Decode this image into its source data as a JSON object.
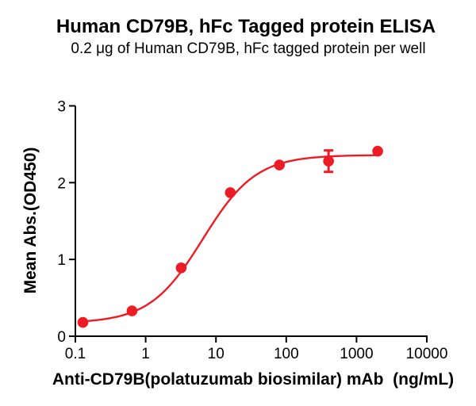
{
  "chart_data": {
    "type": "scatter",
    "title": "Human CD79B, hFc Tagged protein ELISA",
    "subtitle": "0.2 μg of Human CD79B, hFc tagged protein per well",
    "xlabel": "Anti-CD79B(polatuzumab biosimilar) mAb  (ng/mL)",
    "ylabel": "Mean Abs.(OD450)",
    "x_scale": "log10",
    "xlim": [
      0.1,
      10000
    ],
    "ylim": [
      0,
      3
    ],
    "x_ticks": [
      0.1,
      1,
      10,
      100,
      1000,
      10000
    ],
    "x_tick_labels": [
      "0.1",
      "1",
      "10",
      "100",
      "1000",
      "10000"
    ],
    "y_ticks": [
      0,
      1,
      2,
      3
    ],
    "y_tick_labels": [
      "0",
      "1",
      "2",
      "3"
    ],
    "grid": false,
    "legend": false,
    "axis_color": "#000000",
    "series": [
      {
        "color": "#ED1C24",
        "marker": "circle",
        "points": [
          {
            "x": 0.128,
            "y": 0.18
          },
          {
            "x": 0.64,
            "y": 0.33
          },
          {
            "x": 3.2,
            "y": 0.89
          },
          {
            "x": 16,
            "y": 1.87
          },
          {
            "x": 80,
            "y": 2.23
          },
          {
            "x": 400,
            "y": 2.28,
            "y_err": 0.14
          },
          {
            "x": 2000,
            "y": 2.41
          }
        ],
        "fit_curve": {
          "model": "4PL",
          "bottom": 0.17,
          "top": 2.36,
          "ec50": 6.5,
          "hill": 1.15,
          "x_range": [
            0.128,
            2000
          ]
        }
      }
    ]
  }
}
